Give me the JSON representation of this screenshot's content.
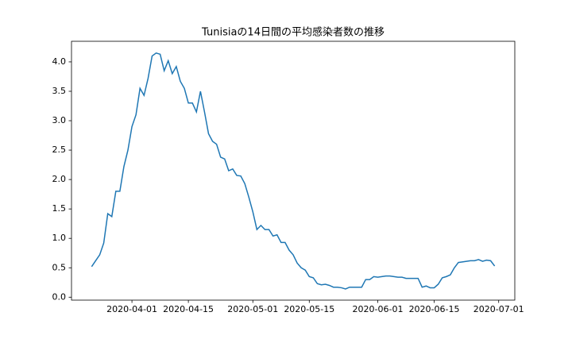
{
  "chart_data": {
    "type": "line",
    "title": "Tunisiaの14日間の平均感染者数の推移",
    "x": [
      "2020-03-22",
      "2020-03-23",
      "2020-03-24",
      "2020-03-25",
      "2020-03-26",
      "2020-03-27",
      "2020-03-28",
      "2020-03-29",
      "2020-03-30",
      "2020-03-31",
      "2020-04-01",
      "2020-04-02",
      "2020-04-03",
      "2020-04-04",
      "2020-04-05",
      "2020-04-06",
      "2020-04-07",
      "2020-04-08",
      "2020-04-09",
      "2020-04-10",
      "2020-04-11",
      "2020-04-12",
      "2020-04-13",
      "2020-04-14",
      "2020-04-15",
      "2020-04-16",
      "2020-04-17",
      "2020-04-18",
      "2020-04-19",
      "2020-04-20",
      "2020-04-21",
      "2020-04-22",
      "2020-04-23",
      "2020-04-24",
      "2020-04-25",
      "2020-04-26",
      "2020-04-27",
      "2020-04-28",
      "2020-04-29",
      "2020-04-30",
      "2020-05-01",
      "2020-05-02",
      "2020-05-03",
      "2020-05-04",
      "2020-05-05",
      "2020-05-06",
      "2020-05-07",
      "2020-05-08",
      "2020-05-09",
      "2020-05-10",
      "2020-05-11",
      "2020-05-12",
      "2020-05-13",
      "2020-05-14",
      "2020-05-15",
      "2020-05-16",
      "2020-05-17",
      "2020-05-18",
      "2020-05-19",
      "2020-05-20",
      "2020-05-21",
      "2020-05-22",
      "2020-05-23",
      "2020-05-24",
      "2020-05-25",
      "2020-05-26",
      "2020-05-27",
      "2020-05-28",
      "2020-05-29",
      "2020-05-30",
      "2020-05-31",
      "2020-06-01",
      "2020-06-02",
      "2020-06-03",
      "2020-06-04",
      "2020-06-05",
      "2020-06-06",
      "2020-06-07",
      "2020-06-08",
      "2020-06-09",
      "2020-06-10",
      "2020-06-11",
      "2020-06-12",
      "2020-06-13",
      "2020-06-14",
      "2020-06-15",
      "2020-06-16",
      "2020-06-17",
      "2020-06-18",
      "2020-06-19",
      "2020-06-20",
      "2020-06-21",
      "2020-06-22",
      "2020-06-23",
      "2020-06-24",
      "2020-06-25",
      "2020-06-26",
      "2020-06-27",
      "2020-06-28",
      "2020-06-29",
      "2020-06-30"
    ],
    "series": [
      {
        "color": "#1f77b4",
        "values": [
          0.52,
          0.62,
          0.72,
          0.92,
          1.42,
          1.37,
          1.8,
          1.8,
          2.22,
          2.5,
          2.9,
          3.1,
          3.55,
          3.43,
          3.72,
          4.1,
          4.15,
          4.13,
          3.85,
          4.02,
          3.8,
          3.92,
          3.67,
          3.55,
          3.3,
          3.3,
          3.15,
          3.5,
          3.15,
          2.78,
          2.65,
          2.6,
          2.38,
          2.35,
          2.15,
          2.18,
          2.07,
          2.06,
          1.93,
          1.7,
          1.45,
          1.15,
          1.22,
          1.15,
          1.15,
          1.04,
          1.06,
          0.93,
          0.93,
          0.8,
          0.72,
          0.58,
          0.5,
          0.46,
          0.35,
          0.33,
          0.23,
          0.21,
          0.22,
          0.2,
          0.17,
          0.17,
          0.16,
          0.14,
          0.17,
          0.17,
          0.17,
          0.17,
          0.3,
          0.3,
          0.35,
          0.34,
          0.35,
          0.36,
          0.36,
          0.35,
          0.34,
          0.34,
          0.32,
          0.32,
          0.32,
          0.32,
          0.17,
          0.19,
          0.16,
          0.16,
          0.22,
          0.33,
          0.35,
          0.38,
          0.5,
          0.59,
          0.6,
          0.61,
          0.62,
          0.62,
          0.64,
          0.61,
          0.63,
          0.62,
          0.53
        ]
      }
    ],
    "xlim": [
      "2020-03-17",
      "2020-07-05"
    ],
    "xticks": [
      "2020-04-01",
      "2020-04-15",
      "2020-05-01",
      "2020-05-15",
      "2020-06-01",
      "2020-06-15",
      "2020-07-01"
    ],
    "ylim": [
      -0.05,
      4.35
    ],
    "yticks": [
      {
        "value": 0,
        "label": "0.0"
      },
      {
        "value": 0.5,
        "label": "0.5"
      },
      {
        "value": 1,
        "label": "1.0"
      },
      {
        "value": 1.5,
        "label": "1.5"
      },
      {
        "value": 2,
        "label": "2.0"
      },
      {
        "value": 2.5,
        "label": "2.5"
      },
      {
        "value": 3,
        "label": "3.0"
      },
      {
        "value": 3.5,
        "label": "3.5"
      },
      {
        "value": 4,
        "label": "4.0"
      }
    ]
  }
}
